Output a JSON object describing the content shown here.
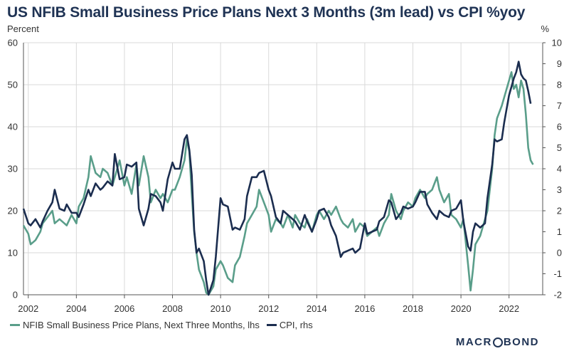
{
  "title": "US NFIB Small Business Price Plans Next 3 Months (3m lead) vs CPI %yoy",
  "left_unit": "Percent",
  "right_unit": "%",
  "brand": {
    "part1": "MACR",
    "part2": "BOND"
  },
  "chart_data": {
    "type": "line",
    "x_ticks": [
      "2002",
      "2004",
      "2006",
      "2008",
      "2010",
      "2012",
      "2014",
      "2016",
      "2018",
      "2020",
      "2022"
    ],
    "x_tick_values": [
      2002,
      2004,
      2006,
      2008,
      2010,
      2012,
      2014,
      2016,
      2018,
      2020,
      2022
    ],
    "xlim": [
      2001.8,
      2023.4
    ],
    "y_left": {
      "lim": [
        0,
        60
      ],
      "ticks": [
        "0",
        "10",
        "20",
        "30",
        "40",
        "50",
        "60"
      ]
    },
    "y_right": {
      "lim": [
        -2,
        10
      ],
      "ticks": [
        "-2",
        "-1",
        "0",
        "1",
        "2",
        "3",
        "4",
        "5",
        "6",
        "7",
        "8",
        "9",
        "10"
      ]
    },
    "grid": true,
    "legend_position": "bottom-left",
    "series": [
      {
        "name": "NFIB Small Business Price Plans, Next Three Months, lhs",
        "axis": "left",
        "color": "#5a9e8a",
        "points": [
          [
            2001.8,
            16.5
          ],
          [
            2002.0,
            14.5
          ],
          [
            2002.1,
            12.0
          ],
          [
            2002.3,
            13.0
          ],
          [
            2002.5,
            15.0
          ],
          [
            2002.6,
            17.0
          ],
          [
            2002.8,
            18.5
          ],
          [
            2003.0,
            20.0
          ],
          [
            2003.1,
            17.0
          ],
          [
            2003.3,
            18.0
          ],
          [
            2003.5,
            17.0
          ],
          [
            2003.6,
            16.5
          ],
          [
            2003.8,
            19.0
          ],
          [
            2004.0,
            17.0
          ],
          [
            2004.1,
            21.0
          ],
          [
            2004.3,
            23.0
          ],
          [
            2004.5,
            28.0
          ],
          [
            2004.6,
            33.0
          ],
          [
            2004.8,
            29.0
          ],
          [
            2005.0,
            28.0
          ],
          [
            2005.1,
            30.0
          ],
          [
            2005.3,
            29.0
          ],
          [
            2005.5,
            26.0
          ],
          [
            2005.6,
            28.0
          ],
          [
            2005.8,
            32.0
          ],
          [
            2006.0,
            26.0
          ],
          [
            2006.1,
            28.0
          ],
          [
            2006.3,
            24.0
          ],
          [
            2006.5,
            31.0
          ],
          [
            2006.6,
            26.0
          ],
          [
            2006.8,
            33.0
          ],
          [
            2007.0,
            28.0
          ],
          [
            2007.1,
            22.0
          ],
          [
            2007.3,
            25.0
          ],
          [
            2007.5,
            23.0
          ],
          [
            2007.6,
            24.0
          ],
          [
            2007.8,
            22.0
          ],
          [
            2008.0,
            25.0
          ],
          [
            2008.1,
            25.0
          ],
          [
            2008.3,
            28.0
          ],
          [
            2008.5,
            32.0
          ],
          [
            2008.6,
            37.0
          ],
          [
            2008.7,
            34.0
          ],
          [
            2008.8,
            24.0
          ],
          [
            2008.9,
            15.0
          ],
          [
            2009.0,
            10.0
          ],
          [
            2009.1,
            6.0
          ],
          [
            2009.3,
            3.0
          ],
          [
            2009.4,
            0.5
          ],
          [
            2009.5,
            0.0
          ],
          [
            2009.7,
            2.0
          ],
          [
            2009.8,
            6.0
          ],
          [
            2010.0,
            8.0
          ],
          [
            2010.1,
            7.0
          ],
          [
            2010.3,
            4.0
          ],
          [
            2010.5,
            3.0
          ],
          [
            2010.6,
            7.0
          ],
          [
            2010.8,
            9.0
          ],
          [
            2011.0,
            14.0
          ],
          [
            2011.1,
            17.0
          ],
          [
            2011.3,
            19.0
          ],
          [
            2011.5,
            21.0
          ],
          [
            2011.6,
            25.0
          ],
          [
            2011.8,
            22.0
          ],
          [
            2012.0,
            19.0
          ],
          [
            2012.1,
            15.0
          ],
          [
            2012.3,
            18.0
          ],
          [
            2012.5,
            17.0
          ],
          [
            2012.6,
            16.0
          ],
          [
            2012.8,
            19.0
          ],
          [
            2013.0,
            16.0
          ],
          [
            2013.1,
            19.0
          ],
          [
            2013.3,
            17.0
          ],
          [
            2013.5,
            16.0
          ],
          [
            2013.6,
            18.0
          ],
          [
            2013.8,
            15.0
          ],
          [
            2014.0,
            19.0
          ],
          [
            2014.1,
            20.0
          ],
          [
            2014.3,
            18.0
          ],
          [
            2014.5,
            20.0
          ],
          [
            2014.6,
            19.0
          ],
          [
            2014.8,
            21.0
          ],
          [
            2015.0,
            18.0
          ],
          [
            2015.1,
            17.0
          ],
          [
            2015.3,
            16.0
          ],
          [
            2015.5,
            18.0
          ],
          [
            2015.6,
            15.0
          ],
          [
            2015.8,
            17.0
          ],
          [
            2016.0,
            16.0
          ],
          [
            2016.1,
            14.0
          ],
          [
            2016.3,
            15.0
          ],
          [
            2016.5,
            16.0
          ],
          [
            2016.6,
            14.0
          ],
          [
            2016.8,
            17.0
          ],
          [
            2017.0,
            19.0
          ],
          [
            2017.1,
            24.0
          ],
          [
            2017.3,
            20.0
          ],
          [
            2017.5,
            18.0
          ],
          [
            2017.6,
            20.0
          ],
          [
            2017.8,
            22.0
          ],
          [
            2018.0,
            21.0
          ],
          [
            2018.1,
            23.0
          ],
          [
            2018.3,
            25.0
          ],
          [
            2018.5,
            23.0
          ],
          [
            2018.6,
            24.0
          ],
          [
            2018.8,
            25.0
          ],
          [
            2019.0,
            28.0
          ],
          [
            2019.1,
            25.0
          ],
          [
            2019.3,
            22.0
          ],
          [
            2019.5,
            24.0
          ],
          [
            2019.6,
            19.0
          ],
          [
            2019.8,
            18.0
          ],
          [
            2020.0,
            16.0
          ],
          [
            2020.1,
            18.0
          ],
          [
            2020.3,
            7.0
          ],
          [
            2020.4,
            1.0
          ],
          [
            2020.5,
            6.0
          ],
          [
            2020.6,
            12.0
          ],
          [
            2020.8,
            14.0
          ],
          [
            2021.0,
            18.0
          ],
          [
            2021.1,
            20.0
          ],
          [
            2021.3,
            30.0
          ],
          [
            2021.4,
            38.0
          ],
          [
            2021.5,
            42.0
          ],
          [
            2021.7,
            45.0
          ],
          [
            2021.8,
            47.0
          ],
          [
            2022.0,
            51.0
          ],
          [
            2022.1,
            53.0
          ],
          [
            2022.2,
            49.0
          ],
          [
            2022.3,
            50.0
          ],
          [
            2022.4,
            47.0
          ],
          [
            2022.5,
            51.0
          ],
          [
            2022.6,
            49.0
          ],
          [
            2022.7,
            43.0
          ],
          [
            2022.8,
            35.0
          ],
          [
            2022.9,
            32.0
          ],
          [
            2023.0,
            31.0
          ]
        ]
      },
      {
        "name": "CPI, rhs",
        "axis": "right",
        "color": "#1b2d4f",
        "points": [
          [
            2001.8,
            2.1
          ],
          [
            2002.0,
            1.4
          ],
          [
            2002.1,
            1.3
          ],
          [
            2002.3,
            1.6
          ],
          [
            2002.5,
            1.2
          ],
          [
            2002.6,
            1.5
          ],
          [
            2002.8,
            2.0
          ],
          [
            2003.0,
            2.4
          ],
          [
            2003.1,
            3.0
          ],
          [
            2003.3,
            2.1
          ],
          [
            2003.5,
            2.0
          ],
          [
            2003.6,
            2.3
          ],
          [
            2003.8,
            1.9
          ],
          [
            2004.0,
            1.9
          ],
          [
            2004.1,
            1.7
          ],
          [
            2004.3,
            2.3
          ],
          [
            2004.5,
            3.0
          ],
          [
            2004.6,
            2.7
          ],
          [
            2004.8,
            3.3
          ],
          [
            2005.0,
            3.0
          ],
          [
            2005.1,
            3.1
          ],
          [
            2005.3,
            3.4
          ],
          [
            2005.5,
            3.2
          ],
          [
            2005.6,
            4.7
          ],
          [
            2005.8,
            3.5
          ],
          [
            2006.0,
            3.6
          ],
          [
            2006.1,
            4.2
          ],
          [
            2006.3,
            4.1
          ],
          [
            2006.5,
            4.3
          ],
          [
            2006.6,
            2.1
          ],
          [
            2006.8,
            1.3
          ],
          [
            2007.0,
            2.1
          ],
          [
            2007.1,
            2.8
          ],
          [
            2007.3,
            2.7
          ],
          [
            2007.5,
            2.4
          ],
          [
            2007.6,
            2.0
          ],
          [
            2007.8,
            3.5
          ],
          [
            2008.0,
            4.3
          ],
          [
            2008.1,
            4.0
          ],
          [
            2008.3,
            4.0
          ],
          [
            2008.5,
            5.4
          ],
          [
            2008.6,
            5.6
          ],
          [
            2008.7,
            4.9
          ],
          [
            2008.8,
            3.7
          ],
          [
            2008.9,
            1.1
          ],
          [
            2009.0,
            0.0
          ],
          [
            2009.1,
            0.2
          ],
          [
            2009.3,
            -0.4
          ],
          [
            2009.4,
            -1.3
          ],
          [
            2009.5,
            -2.0
          ],
          [
            2009.7,
            -1.3
          ],
          [
            2009.8,
            -0.2
          ],
          [
            2010.0,
            2.6
          ],
          [
            2010.1,
            2.3
          ],
          [
            2010.3,
            2.2
          ],
          [
            2010.5,
            1.1
          ],
          [
            2010.6,
            1.2
          ],
          [
            2010.8,
            1.1
          ],
          [
            2011.0,
            1.6
          ],
          [
            2011.1,
            2.7
          ],
          [
            2011.3,
            3.6
          ],
          [
            2011.5,
            3.6
          ],
          [
            2011.6,
            3.8
          ],
          [
            2011.8,
            3.9
          ],
          [
            2012.0,
            3.0
          ],
          [
            2012.1,
            2.7
          ],
          [
            2012.3,
            1.7
          ],
          [
            2012.5,
            1.4
          ],
          [
            2012.6,
            2.0
          ],
          [
            2012.8,
            1.8
          ],
          [
            2013.0,
            1.6
          ],
          [
            2013.1,
            1.5
          ],
          [
            2013.3,
            1.1
          ],
          [
            2013.5,
            1.8
          ],
          [
            2013.6,
            1.5
          ],
          [
            2013.8,
            1.0
          ],
          [
            2014.0,
            1.6
          ],
          [
            2014.1,
            2.0
          ],
          [
            2014.3,
            2.1
          ],
          [
            2014.5,
            1.7
          ],
          [
            2014.6,
            1.3
          ],
          [
            2014.8,
            0.8
          ],
          [
            2015.0,
            -0.2
          ],
          [
            2015.1,
            0.0
          ],
          [
            2015.3,
            0.1
          ],
          [
            2015.5,
            0.2
          ],
          [
            2015.6,
            0.0
          ],
          [
            2015.8,
            0.2
          ],
          [
            2016.0,
            1.4
          ],
          [
            2016.1,
            0.9
          ],
          [
            2016.3,
            1.0
          ],
          [
            2016.5,
            1.1
          ],
          [
            2016.6,
            1.5
          ],
          [
            2016.8,
            1.7
          ],
          [
            2017.0,
            2.5
          ],
          [
            2017.1,
            2.4
          ],
          [
            2017.3,
            1.6
          ],
          [
            2017.5,
            1.9
          ],
          [
            2017.6,
            2.2
          ],
          [
            2017.8,
            2.1
          ],
          [
            2018.0,
            2.2
          ],
          [
            2018.1,
            2.4
          ],
          [
            2018.3,
            2.9
          ],
          [
            2018.5,
            2.9
          ],
          [
            2018.6,
            2.3
          ],
          [
            2018.8,
            1.9
          ],
          [
            2019.0,
            1.6
          ],
          [
            2019.1,
            2.0
          ],
          [
            2019.3,
            1.8
          ],
          [
            2019.5,
            1.7
          ],
          [
            2019.6,
            2.0
          ],
          [
            2019.8,
            2.1
          ],
          [
            2020.0,
            2.5
          ],
          [
            2020.1,
            1.5
          ],
          [
            2020.3,
            0.3
          ],
          [
            2020.4,
            0.1
          ],
          [
            2020.5,
            1.0
          ],
          [
            2020.6,
            1.4
          ],
          [
            2020.8,
            1.2
          ],
          [
            2021.0,
            1.4
          ],
          [
            2021.1,
            2.6
          ],
          [
            2021.3,
            4.2
          ],
          [
            2021.4,
            5.4
          ],
          [
            2021.5,
            5.3
          ],
          [
            2021.7,
            5.4
          ],
          [
            2021.8,
            6.2
          ],
          [
            2022.0,
            7.5
          ],
          [
            2022.1,
            7.9
          ],
          [
            2022.2,
            8.3
          ],
          [
            2022.3,
            8.6
          ],
          [
            2022.4,
            9.1
          ],
          [
            2022.5,
            8.5
          ],
          [
            2022.6,
            8.3
          ],
          [
            2022.7,
            8.2
          ],
          [
            2022.8,
            7.7
          ],
          [
            2022.9,
            7.1
          ]
        ]
      }
    ]
  }
}
